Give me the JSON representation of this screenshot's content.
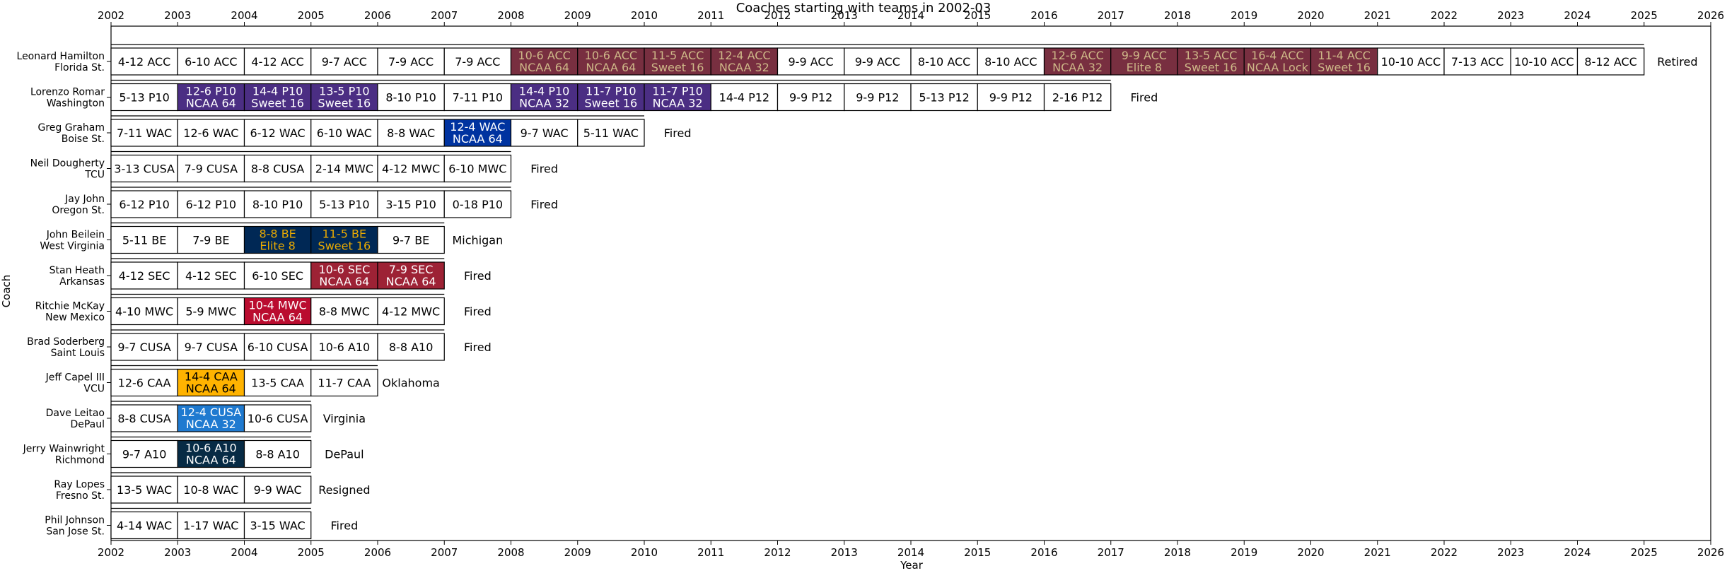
{
  "chart_data": {
    "type": "timeline-table",
    "title": "Coaches starting with teams in 2002-03",
    "xlabel": "Year",
    "ylabel": "Coach",
    "xlim": [
      2002,
      2026
    ],
    "xticks": [
      2002,
      2003,
      2004,
      2005,
      2006,
      2007,
      2008,
      2009,
      2010,
      2011,
      2012,
      2013,
      2014,
      2015,
      2016,
      2017,
      2018,
      2019,
      2020,
      2021,
      2022,
      2023,
      2024,
      2025,
      2026
    ],
    "coaches": [
      {
        "name": "Leonard Hamilton",
        "team": "Florida St.",
        "colors": {
          "fill": "#782F40",
          "text": "#CEB888"
        },
        "outcome": "Retired",
        "seasons": [
          {
            "year": 2002,
            "record": "4-12 ACC",
            "note": ""
          },
          {
            "year": 2003,
            "record": "6-10 ACC",
            "note": ""
          },
          {
            "year": 2004,
            "record": "4-12 ACC",
            "note": ""
          },
          {
            "year": 2005,
            "record": "9-7 ACC",
            "note": ""
          },
          {
            "year": 2006,
            "record": "7-9 ACC",
            "note": ""
          },
          {
            "year": 2007,
            "record": "7-9 ACC",
            "note": ""
          },
          {
            "year": 2008,
            "record": "10-6 ACC",
            "note": "NCAA 64"
          },
          {
            "year": 2009,
            "record": "10-6 ACC",
            "note": "NCAA 64"
          },
          {
            "year": 2010,
            "record": "11-5 ACC",
            "note": "Sweet 16"
          },
          {
            "year": 2011,
            "record": "12-4 ACC",
            "note": "NCAA 32"
          },
          {
            "year": 2012,
            "record": "9-9 ACC",
            "note": ""
          },
          {
            "year": 2013,
            "record": "9-9 ACC",
            "note": ""
          },
          {
            "year": 2014,
            "record": "8-10 ACC",
            "note": ""
          },
          {
            "year": 2015,
            "record": "8-10 ACC",
            "note": ""
          },
          {
            "year": 2016,
            "record": "12-6 ACC",
            "note": "NCAA 32"
          },
          {
            "year": 2017,
            "record": "9-9 ACC",
            "note": "Elite 8"
          },
          {
            "year": 2018,
            "record": "13-5 ACC",
            "note": "Sweet 16"
          },
          {
            "year": 2019,
            "record": "16-4 ACC",
            "note": "NCAA Lock"
          },
          {
            "year": 2020,
            "record": "11-4 ACC",
            "note": "Sweet 16"
          },
          {
            "year": 2021,
            "record": "10-10 ACC",
            "note": ""
          },
          {
            "year": 2022,
            "record": "7-13 ACC",
            "note": ""
          },
          {
            "year": 2023,
            "record": "10-10 ACC",
            "note": ""
          },
          {
            "year": 2024,
            "record": "8-12 ACC",
            "note": ""
          }
        ]
      },
      {
        "name": "Lorenzo Romar",
        "team": "Washington",
        "colors": {
          "fill": "#4B2E83",
          "text": "#FFFFFF"
        },
        "outcome": "Fired",
        "seasons": [
          {
            "year": 2002,
            "record": "5-13 P10",
            "note": ""
          },
          {
            "year": 2003,
            "record": "12-6 P10",
            "note": "NCAA 64"
          },
          {
            "year": 2004,
            "record": "14-4 P10",
            "note": "Sweet 16"
          },
          {
            "year": 2005,
            "record": "13-5 P10",
            "note": "Sweet 16"
          },
          {
            "year": 2006,
            "record": "8-10 P10",
            "note": ""
          },
          {
            "year": 2007,
            "record": "7-11 P10",
            "note": ""
          },
          {
            "year": 2008,
            "record": "14-4 P10",
            "note": "NCAA 32"
          },
          {
            "year": 2009,
            "record": "11-7 P10",
            "note": "Sweet 16"
          },
          {
            "year": 2010,
            "record": "11-7 P10",
            "note": "NCAA 32"
          },
          {
            "year": 2011,
            "record": "14-4 P12",
            "note": ""
          },
          {
            "year": 2012,
            "record": "9-9 P12",
            "note": ""
          },
          {
            "year": 2013,
            "record": "9-9 P12",
            "note": ""
          },
          {
            "year": 2014,
            "record": "5-13 P12",
            "note": ""
          },
          {
            "year": 2015,
            "record": "9-9 P12",
            "note": ""
          },
          {
            "year": 2016,
            "record": "2-16 P12",
            "note": ""
          }
        ]
      },
      {
        "name": "Greg Graham",
        "team": "Boise St.",
        "colors": {
          "fill": "#0033A0",
          "text": "#FFFFFF"
        },
        "outcome": "Fired",
        "seasons": [
          {
            "year": 2002,
            "record": "7-11 WAC",
            "note": ""
          },
          {
            "year": 2003,
            "record": "12-6 WAC",
            "note": ""
          },
          {
            "year": 2004,
            "record": "6-12 WAC",
            "note": ""
          },
          {
            "year": 2005,
            "record": "6-10 WAC",
            "note": ""
          },
          {
            "year": 2006,
            "record": "8-8 WAC",
            "note": ""
          },
          {
            "year": 2007,
            "record": "12-4 WAC",
            "note": "NCAA 64"
          },
          {
            "year": 2008,
            "record": "9-7 WAC",
            "note": ""
          },
          {
            "year": 2009,
            "record": "5-11 WAC",
            "note": ""
          }
        ]
      },
      {
        "name": "Neil Dougherty",
        "team": "TCU",
        "colors": {
          "fill": "#4D1979",
          "text": "#FFFFFF"
        },
        "outcome": "Fired",
        "seasons": [
          {
            "year": 2002,
            "record": "3-13 CUSA",
            "note": ""
          },
          {
            "year": 2003,
            "record": "7-9 CUSA",
            "note": ""
          },
          {
            "year": 2004,
            "record": "8-8 CUSA",
            "note": ""
          },
          {
            "year": 2005,
            "record": "2-14 MWC",
            "note": ""
          },
          {
            "year": 2006,
            "record": "4-12 MWC",
            "note": ""
          },
          {
            "year": 2007,
            "record": "6-10 MWC",
            "note": ""
          }
        ]
      },
      {
        "name": "Jay John",
        "team": "Oregon St.",
        "colors": {
          "fill": "#DC4405",
          "text": "#000000"
        },
        "outcome": "Fired",
        "seasons": [
          {
            "year": 2002,
            "record": "6-12 P10",
            "note": ""
          },
          {
            "year": 2003,
            "record": "6-12 P10",
            "note": ""
          },
          {
            "year": 2004,
            "record": "8-10 P10",
            "note": ""
          },
          {
            "year": 2005,
            "record": "5-13 P10",
            "note": ""
          },
          {
            "year": 2006,
            "record": "3-15 P10",
            "note": ""
          },
          {
            "year": 2007,
            "record": "0-18 P10",
            "note": ""
          }
        ]
      },
      {
        "name": "John Beilein",
        "team": "West Virginia",
        "colors": {
          "fill": "#002855",
          "text": "#EAAA00"
        },
        "outcome": "Michigan",
        "seasons": [
          {
            "year": 2002,
            "record": "5-11 BE",
            "note": ""
          },
          {
            "year": 2003,
            "record": "7-9 BE",
            "note": ""
          },
          {
            "year": 2004,
            "record": "8-8 BE",
            "note": "Elite 8"
          },
          {
            "year": 2005,
            "record": "11-5 BE",
            "note": "Sweet 16"
          },
          {
            "year": 2006,
            "record": "9-7 BE",
            "note": ""
          }
        ]
      },
      {
        "name": "Stan Heath",
        "team": "Arkansas",
        "colors": {
          "fill": "#9D2235",
          "text": "#FFFFFF"
        },
        "outcome": "Fired",
        "seasons": [
          {
            "year": 2002,
            "record": "4-12 SEC",
            "note": ""
          },
          {
            "year": 2003,
            "record": "4-12 SEC",
            "note": ""
          },
          {
            "year": 2004,
            "record": "6-10 SEC",
            "note": ""
          },
          {
            "year": 2005,
            "record": "10-6 SEC",
            "note": "NCAA 64"
          },
          {
            "year": 2006,
            "record": "7-9 SEC",
            "note": "NCAA 64"
          }
        ]
      },
      {
        "name": "Ritchie McKay",
        "team": "New Mexico",
        "colors": {
          "fill": "#BA0C2F",
          "text": "#FFFFFF"
        },
        "outcome": "Fired",
        "seasons": [
          {
            "year": 2002,
            "record": "4-10 MWC",
            "note": ""
          },
          {
            "year": 2003,
            "record": "5-9 MWC",
            "note": ""
          },
          {
            "year": 2004,
            "record": "10-4 MWC",
            "note": "NCAA 64"
          },
          {
            "year": 2005,
            "record": "8-8 MWC",
            "note": ""
          },
          {
            "year": 2006,
            "record": "4-12 MWC",
            "note": ""
          }
        ]
      },
      {
        "name": "Brad Soderberg",
        "team": "Saint Louis",
        "colors": {
          "fill": "#003DA5",
          "text": "#FFFFFF"
        },
        "outcome": "Fired",
        "seasons": [
          {
            "year": 2002,
            "record": "9-7 CUSA",
            "note": ""
          },
          {
            "year": 2003,
            "record": "9-7 CUSA",
            "note": ""
          },
          {
            "year": 2004,
            "record": "6-10 CUSA",
            "note": ""
          },
          {
            "year": 2005,
            "record": "10-6 A10",
            "note": ""
          },
          {
            "year": 2006,
            "record": "8-8 A10",
            "note": ""
          }
        ]
      },
      {
        "name": "Jeff Capel III",
        "team": "VCU",
        "colors": {
          "fill": "#FFB300",
          "text": "#000000"
        },
        "outcome": "Oklahoma",
        "seasons": [
          {
            "year": 2002,
            "record": "12-6 CAA",
            "note": ""
          },
          {
            "year": 2003,
            "record": "14-4 CAA",
            "note": "NCAA 64"
          },
          {
            "year": 2004,
            "record": "13-5 CAA",
            "note": ""
          },
          {
            "year": 2005,
            "record": "11-7 CAA",
            "note": ""
          }
        ]
      },
      {
        "name": "Dave Leitao",
        "team": "DePaul",
        "colors": {
          "fill": "#1F7AD0",
          "text": "#FFFFFF"
        },
        "outcome": "Virginia",
        "seasons": [
          {
            "year": 2002,
            "record": "8-8 CUSA",
            "note": ""
          },
          {
            "year": 2003,
            "record": "12-4 CUSA",
            "note": "NCAA 32"
          },
          {
            "year": 2004,
            "record": "10-6 CUSA",
            "note": ""
          }
        ]
      },
      {
        "name": "Jerry Wainwright",
        "team": "Richmond",
        "colors": {
          "fill": "#072B45",
          "text": "#FFFFFF"
        },
        "outcome": "DePaul",
        "seasons": [
          {
            "year": 2002,
            "record": "9-7 A10",
            "note": ""
          },
          {
            "year": 2003,
            "record": "10-6 A10",
            "note": "NCAA 64"
          },
          {
            "year": 2004,
            "record": "8-8 A10",
            "note": ""
          }
        ]
      },
      {
        "name": "Ray Lopes",
        "team": "Fresno St.",
        "colors": {
          "fill": "#DB0032",
          "text": "#FFFFFF"
        },
        "outcome": "Resigned",
        "seasons": [
          {
            "year": 2002,
            "record": "13-5 WAC",
            "note": ""
          },
          {
            "year": 2003,
            "record": "10-8 WAC",
            "note": ""
          },
          {
            "year": 2004,
            "record": "9-9 WAC",
            "note": ""
          }
        ]
      },
      {
        "name": "Phil Johnson",
        "team": "San Jose St.",
        "colors": {
          "fill": "#0055A2",
          "text": "#FFFFFF"
        },
        "outcome": "Fired",
        "seasons": [
          {
            "year": 2002,
            "record": "4-14 WAC",
            "note": ""
          },
          {
            "year": 2003,
            "record": "1-17 WAC",
            "note": ""
          },
          {
            "year": 2004,
            "record": "3-15 WAC",
            "note": ""
          }
        ]
      }
    ]
  }
}
